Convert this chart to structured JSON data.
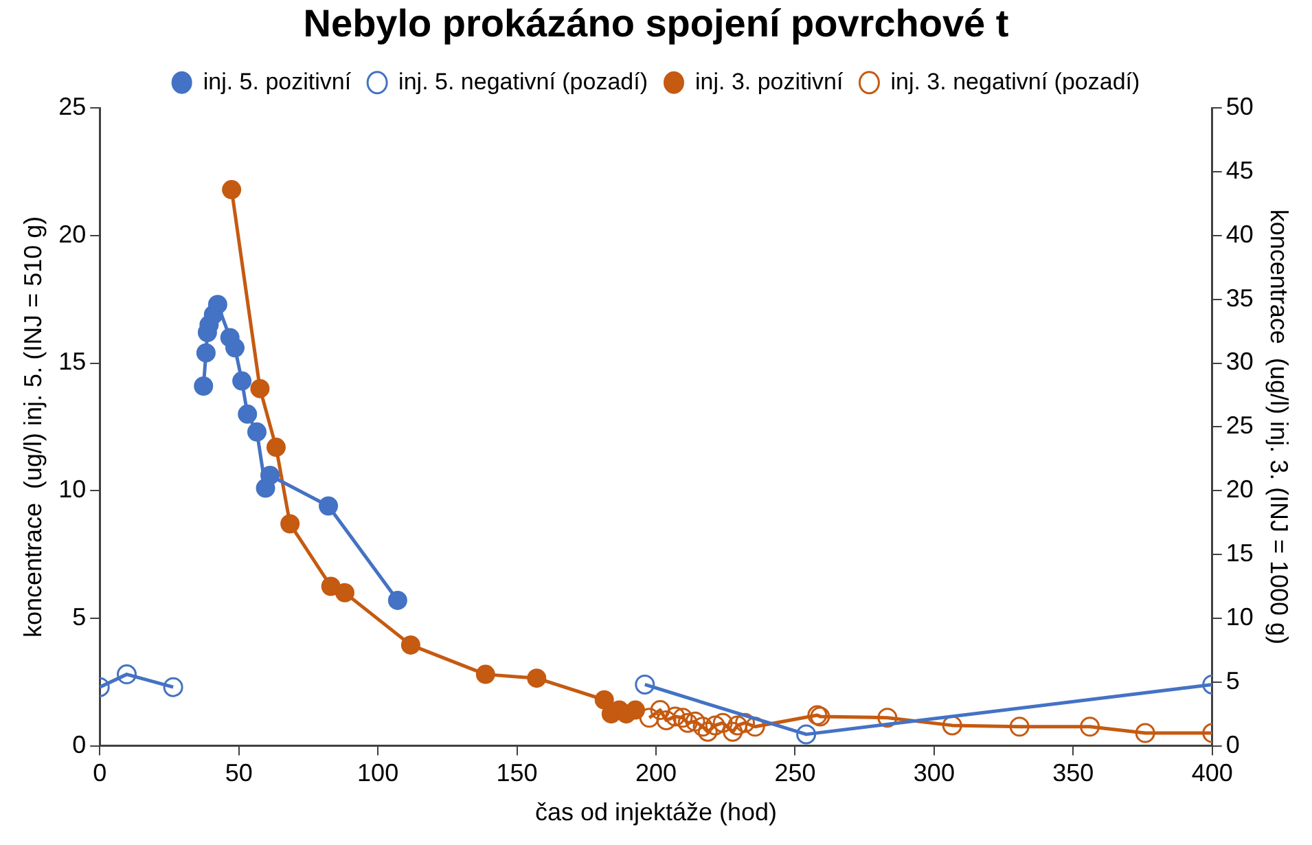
{
  "chart_data": {
    "type": "line",
    "title": "Nebylo prokázáno spojení povrchové t",
    "xlabel": "čas od injektáže (hod)",
    "ylabel": "koncentrace  (ug/l) inj. 5. (INJ = 510 g)",
    "y2label": "koncentrace  (ug/l) inj. 3. (INJ = 1000 g)",
    "xlim": [
      0,
      400
    ],
    "xticks": [
      0,
      50,
      100,
      150,
      200,
      250,
      300,
      350,
      400
    ],
    "ylim": [
      0,
      25
    ],
    "yticks": [
      0,
      5,
      10,
      15,
      20,
      25
    ],
    "y2lim": [
      0,
      50
    ],
    "y2ticks": [
      0,
      5,
      10,
      15,
      20,
      25,
      30,
      35,
      40,
      45,
      50
    ],
    "grid": false,
    "legend": "top",
    "marker": "circle",
    "line_style": "solid",
    "series": [
      {
        "name": "inj. 5. pozitivní",
        "color": "#4472c4",
        "x": [
          37.3,
          38.2,
          38.7,
          39.3,
          40.9,
          42.4,
          46.8,
          48.6,
          51.1,
          53.1,
          56.5,
          59.6,
          61.2,
          82.2,
          107.1
        ],
        "values": [
          14.1,
          15.4,
          16.2,
          16.5,
          16.9,
          17.3,
          16.0,
          15.6,
          14.3,
          13.0,
          12.3,
          10.1,
          10.6,
          9.4,
          5.7
        ]
      },
      {
        "name": "inj. 5. negativní (pozadí)",
        "color": "#4472c4",
        "x": [
          0,
          9.7,
          26.4,
          196,
          254,
          400
        ],
        "values": [
          2.3,
          2.8,
          2.3,
          2.4,
          0.45,
          2.4
        ]
      },
      {
        "name": "inj. 3. pozitivní",
        "color": "#c55a11",
        "axis": "y2",
        "x": [
          47.4,
          57.6,
          63.4,
          68.4,
          83.1,
          88.1,
          111.8,
          138.7,
          157.1,
          181.4,
          183.9,
          186.8,
          189.3,
          192.6
        ],
        "values": [
          43.6,
          28,
          23.4,
          17.4,
          12.5,
          12,
          7.9,
          5.6,
          5.3,
          3.6,
          2.5,
          2.8,
          2.5,
          2.8
        ]
      },
      {
        "name": "inj. 3. negativní (pozadí)",
        "color": "#c55a11",
        "axis": "y2",
        "x": [
          197.6,
          201.5,
          203.7,
          206.9,
          209.6,
          211.4,
          214.1,
          216.8,
          218.6,
          221.3,
          224,
          227.6,
          229.3,
          232,
          235.6,
          258,
          259,
          283.2,
          306.5,
          330.7,
          356,
          375.9,
          400
        ],
        "values": [
          2.2,
          2.8,
          2,
          2.3,
          2.2,
          1.8,
          1.9,
          1.5,
          1.1,
          1.6,
          1.8,
          1.1,
          1.6,
          1.8,
          1.5,
          2.4,
          2.3,
          2.2,
          1.6,
          1.5,
          1.5,
          1,
          1
        ]
      }
    ]
  }
}
